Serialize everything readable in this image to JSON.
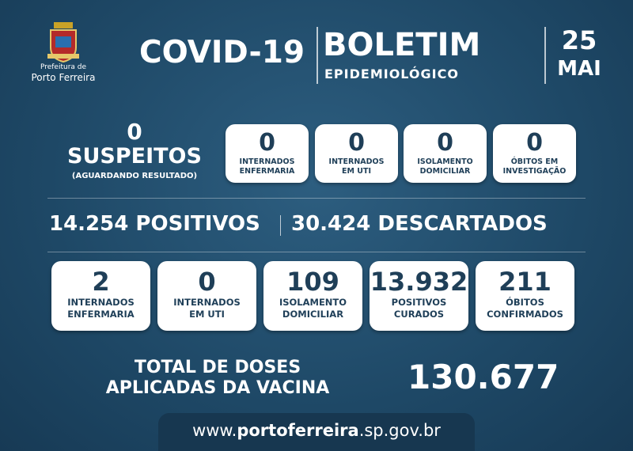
{
  "header": {
    "logo_caption": [
      "Prefeitura de",
      "Porto Ferreira"
    ],
    "title": "COVID-19",
    "bulletin": "BOLETIM",
    "bulletin_subtitle": "EPIDEMIOLÓGICO",
    "day": "25",
    "month": "MAI"
  },
  "suspects": {
    "value": "0",
    "label": "SUSPEITOS",
    "note": "(AGUARDANDO RESULTADO)",
    "boxes": [
      {
        "value": "0",
        "label": [
          "INTERNADOS",
          "ENFERMARIA"
        ]
      },
      {
        "value": "0",
        "label": [
          "INTERNADOS",
          "EM UTI"
        ]
      },
      {
        "value": "0",
        "label": [
          "ISOLAMENTO",
          "DOMICILIAR"
        ]
      },
      {
        "value": "0",
        "label": [
          "ÓBITOS EM",
          "INVESTIGAÇÃO"
        ]
      }
    ]
  },
  "totals": [
    {
      "value": "14.254",
      "label": "POSITIVOS"
    },
    {
      "value": "30.424",
      "label": "DESCARTADOS"
    }
  ],
  "confirmed": {
    "boxes": [
      {
        "value": "2",
        "label": [
          "INTERNADOS",
          "ENFERMARIA"
        ]
      },
      {
        "value": "0",
        "label": [
          "INTERNADOS",
          "EM UTI"
        ]
      },
      {
        "value": "109",
        "label": [
          "ISOLAMENTO",
          "DOMICILIAR"
        ]
      },
      {
        "value": "13.932",
        "label": [
          "POSITIVOS",
          "CURADOS"
        ]
      },
      {
        "value": "211",
        "label": [
          "ÓBITOS",
          "CONFIRMADOS"
        ]
      }
    ]
  },
  "vaccine": {
    "label": [
      "TOTAL DE DOSES",
      "APLICADAS DA VACINA"
    ],
    "value": "130.677"
  },
  "footer": {
    "url_prefix": "www.",
    "url_domain": "portoferreira",
    "url_suffix": ".sp.gov.br"
  }
}
